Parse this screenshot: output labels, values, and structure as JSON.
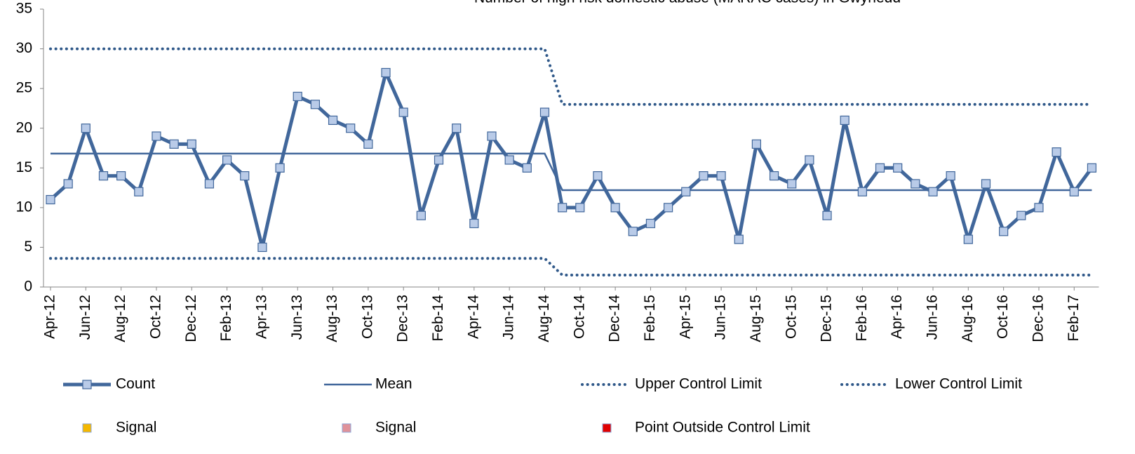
{
  "chart_data": {
    "type": "line",
    "title": "Number of high risk domestic abuse (MARAC cases) in Gwynedd",
    "categories": [
      "Apr-12",
      null,
      "Jun-12",
      null,
      "Aug-12",
      null,
      "Oct-12",
      null,
      "Dec-12",
      null,
      "Feb-13",
      null,
      "Apr-13",
      null,
      "Jun-13",
      null,
      "Aug-13",
      null,
      "Oct-13",
      null,
      "Dec-13",
      null,
      "Feb-14",
      null,
      "Apr-14",
      null,
      "Jun-14",
      null,
      "Aug-14",
      null,
      "Oct-14",
      null,
      "Dec-14",
      null,
      "Feb-15",
      null,
      "Apr-15",
      null,
      "Jun-15",
      null,
      "Aug-15",
      null,
      "Oct-15",
      null,
      "Dec-15",
      null,
      "Feb-16",
      null,
      "Apr-16",
      null,
      "Jun-16",
      null,
      "Aug-16",
      null,
      "Oct-16",
      null,
      "Dec-16",
      null,
      "Feb-17",
      null
    ],
    "series": [
      {
        "name": "Count",
        "color": "#41679b",
        "marker_fill": "#b9cbe8",
        "style": "marker-line",
        "values": [
          11,
          13,
          20,
          14,
          14,
          12,
          19,
          18,
          18,
          13,
          16,
          14,
          5,
          15,
          24,
          23,
          21,
          20,
          18,
          27,
          22,
          9,
          16,
          20,
          8,
          19,
          16,
          15,
          22,
          10,
          10,
          14,
          10,
          7,
          8,
          10,
          12,
          14,
          14,
          6,
          18,
          14,
          13,
          16,
          9,
          21,
          12,
          15,
          15,
          13,
          12,
          14,
          6,
          13,
          7,
          9,
          10,
          17,
          12,
          15
        ]
      },
      {
        "name": "Mean",
        "color": "#41679b",
        "style": "solid",
        "values": [
          16.8,
          16.8,
          16.8,
          16.8,
          16.8,
          16.8,
          16.8,
          16.8,
          16.8,
          16.8,
          16.8,
          16.8,
          16.8,
          16.8,
          16.8,
          16.8,
          16.8,
          16.8,
          16.8,
          16.8,
          16.8,
          16.8,
          16.8,
          16.8,
          16.8,
          16.8,
          16.8,
          16.8,
          16.8,
          12.2,
          12.2,
          12.2,
          12.2,
          12.2,
          12.2,
          12.2,
          12.2,
          12.2,
          12.2,
          12.2,
          12.2,
          12.2,
          12.2,
          12.2,
          12.2,
          12.2,
          12.2,
          12.2,
          12.2,
          12.2,
          12.2,
          12.2,
          12.2,
          12.2,
          12.2,
          12.2,
          12.2,
          12.2,
          12.2,
          12.2
        ]
      },
      {
        "name": "Upper Control Limit",
        "color": "#2f5889",
        "style": "dotted",
        "values": [
          30,
          30,
          30,
          30,
          30,
          30,
          30,
          30,
          30,
          30,
          30,
          30,
          30,
          30,
          30,
          30,
          30,
          30,
          30,
          30,
          30,
          30,
          30,
          30,
          30,
          30,
          30,
          30,
          30,
          23,
          23,
          23,
          23,
          23,
          23,
          23,
          23,
          23,
          23,
          23,
          23,
          23,
          23,
          23,
          23,
          23,
          23,
          23,
          23,
          23,
          23,
          23,
          23,
          23,
          23,
          23,
          23,
          23,
          23,
          23
        ]
      },
      {
        "name": "Lower Control Limit",
        "color": "#2f5889",
        "style": "dotted",
        "values": [
          3.6,
          3.6,
          3.6,
          3.6,
          3.6,
          3.6,
          3.6,
          3.6,
          3.6,
          3.6,
          3.6,
          3.6,
          3.6,
          3.6,
          3.6,
          3.6,
          3.6,
          3.6,
          3.6,
          3.6,
          3.6,
          3.6,
          3.6,
          3.6,
          3.6,
          3.6,
          3.6,
          3.6,
          3.6,
          1.5,
          1.5,
          1.5,
          1.5,
          1.5,
          1.5,
          1.5,
          1.5,
          1.5,
          1.5,
          1.5,
          1.5,
          1.5,
          1.5,
          1.5,
          1.5,
          1.5,
          1.5,
          1.5,
          1.5,
          1.5,
          1.5,
          1.5,
          1.5,
          1.5,
          1.5,
          1.5,
          1.5,
          1.5,
          1.5,
          1.5
        ]
      }
    ],
    "legend_extra": [
      {
        "name": "Signal",
        "color": "#f5b800"
      },
      {
        "name": "Signal",
        "color": "#e0929a"
      },
      {
        "name": "Point Outside Control Limit",
        "color": "#e00000"
      }
    ],
    "ylim": [
      0,
      35
    ],
    "yticks": [
      0,
      5,
      10,
      15,
      20,
      25,
      30,
      35
    ],
    "grid": false,
    "legend": "bottom"
  }
}
